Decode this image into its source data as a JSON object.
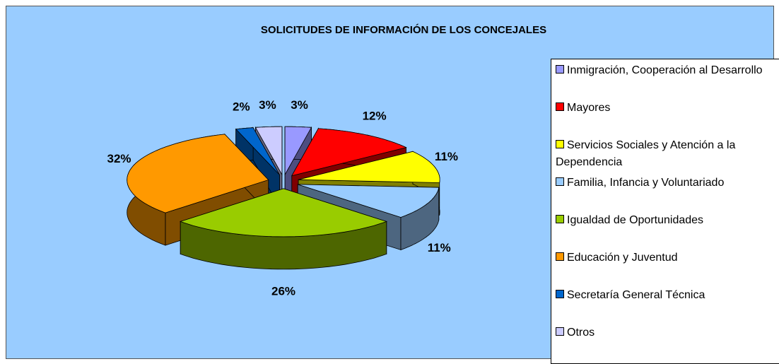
{
  "chart_data": {
    "type": "pie3d",
    "title": "SOLICITUDES DE INFORMACIÓN DE LOS CONCEJALES",
    "categories": [
      "Inmigración, Cooperación al Desarrollo",
      "Mayores",
      "Servicios Sociales y Atención a la Dependencia",
      "Familia, Infancia y Voluntariado",
      "Igualdad de Oportunidades",
      "Educación y Juventud",
      "Secretaría General Técnica",
      "Otros"
    ],
    "values": [
      3,
      12,
      11,
      11,
      26,
      32,
      2,
      3
    ],
    "value_labels": [
      "3%",
      "12%",
      "11%",
      "11%",
      "26%",
      "32%",
      "2%",
      "3%"
    ],
    "colors": [
      "#9999ff",
      "#ff0000",
      "#ffff00",
      "#99ccff",
      "#99cc00",
      "#ff9900",
      "#0066cc",
      "#ccccff"
    ],
    "legend": "right"
  }
}
